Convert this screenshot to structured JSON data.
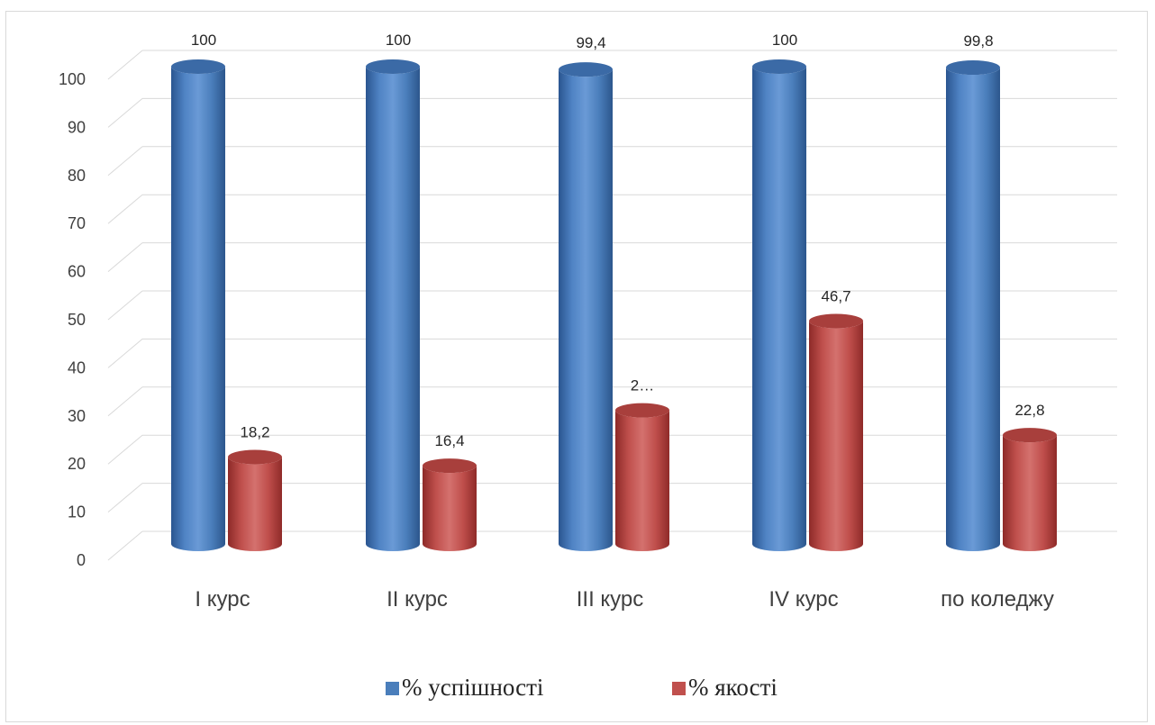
{
  "chart_data": {
    "type": "bar",
    "style": "3d-cylinder",
    "categories": [
      "I курс",
      "II курс",
      "III курс",
      "IV курс",
      "по коледжу"
    ],
    "series": [
      {
        "name": "% успішності",
        "color": "#4a7ebb",
        "values": [
          100,
          100,
          99.4,
          100,
          99.8
        ],
        "labels": [
          "100",
          "100",
          "99,4",
          "100",
          "99,8"
        ]
      },
      {
        "name": "% якості",
        "color": "#c0504d",
        "values": [
          18.2,
          16.4,
          28,
          46.7,
          22.8
        ],
        "labels": [
          "18,2",
          "16,4",
          "2…",
          "46,7",
          "22,8"
        ]
      }
    ],
    "y_ticks": [
      "0",
      "10",
      "20",
      "30",
      "40",
      "50",
      "60",
      "70",
      "80",
      "90",
      "100"
    ],
    "ylim": [
      0,
      100
    ],
    "grid": true,
    "legend_position": "bottom"
  }
}
